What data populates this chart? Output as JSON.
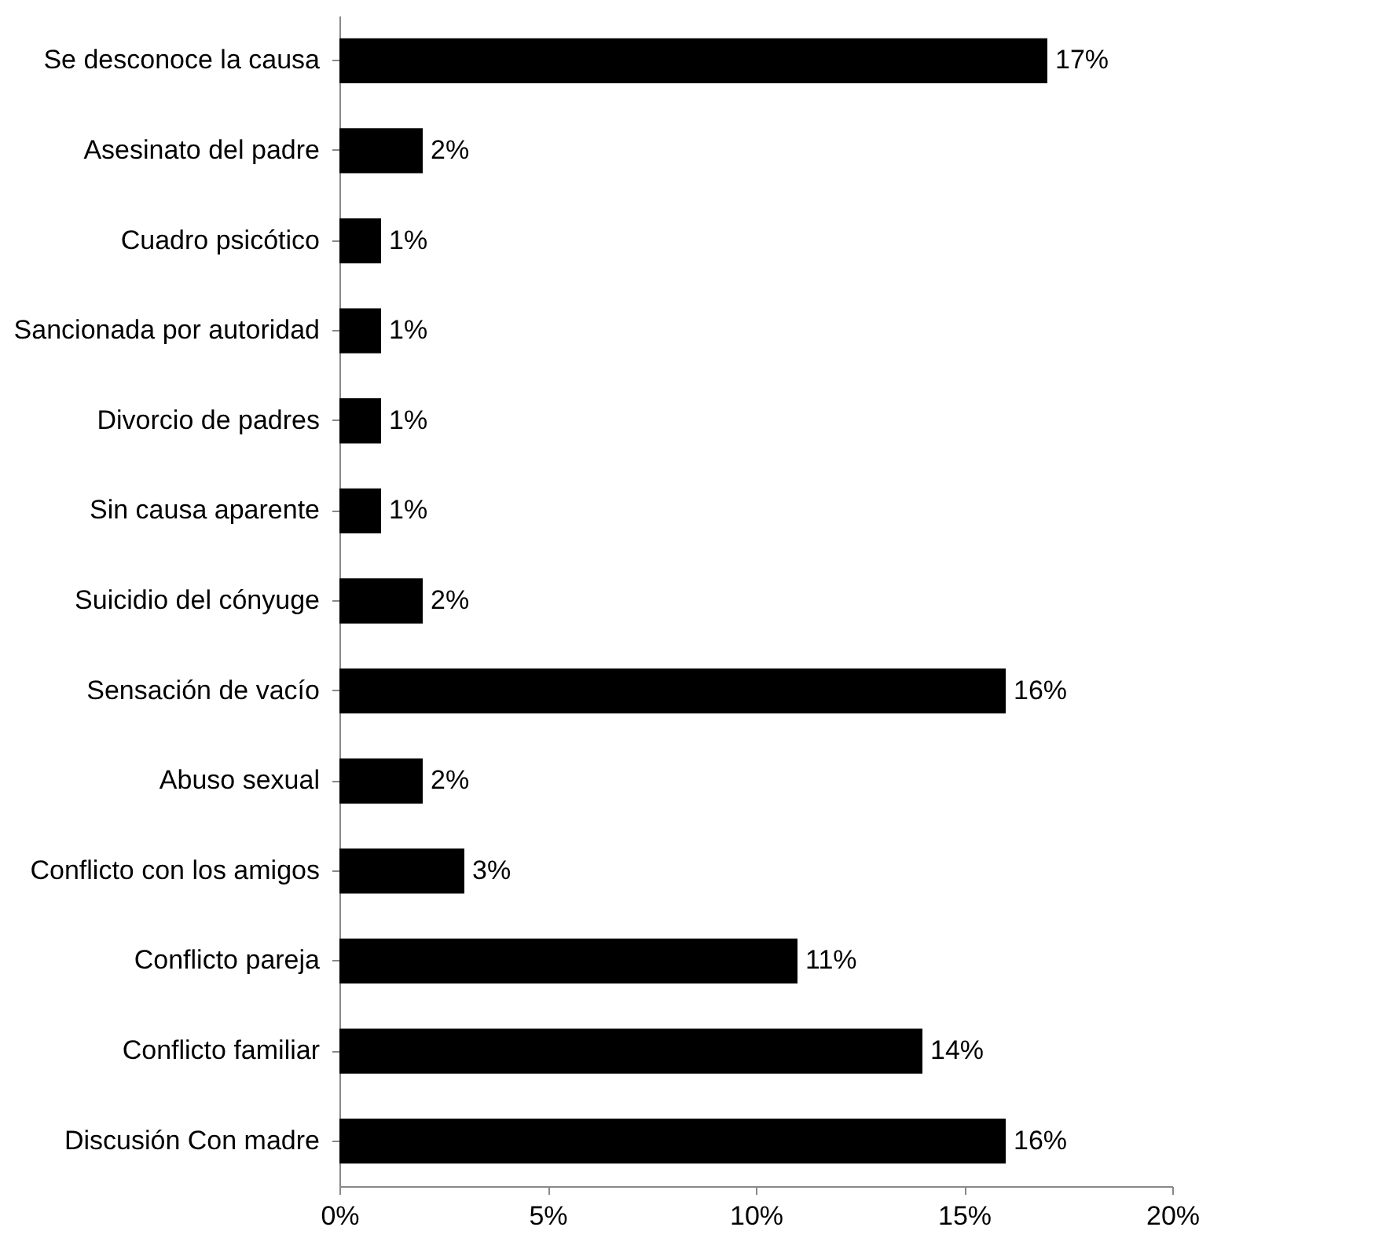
{
  "chart_data": {
    "type": "bar",
    "orientation": "horizontal",
    "categories": [
      "Se desconoce la causa",
      "Asesinato del padre",
      "Cuadro psicótico",
      "Sancionada por autoridad",
      "Divorcio de padres",
      "Sin causa aparente",
      "Suicidio del cónyuge",
      "Sensación de vacío",
      "Abuso sexual",
      "Conflicto con los amigos",
      "Conflicto pareja",
      "Conflicto familiar",
      "Discusión Con madre"
    ],
    "values": [
      17,
      2,
      1,
      1,
      1,
      1,
      2,
      16,
      2,
      3,
      11,
      14,
      16
    ],
    "value_labels": [
      "17%",
      "2%",
      "1%",
      "1%",
      "1%",
      "1%",
      "2%",
      "16%",
      "2%",
      "3%",
      "11%",
      "14%",
      "16%"
    ],
    "color": "#000000",
    "xlim": [
      0,
      20
    ],
    "xticks": [
      {
        "value": 0,
        "label": "0%"
      },
      {
        "value": 5,
        "label": "5%"
      },
      {
        "value": 10,
        "label": "10%"
      },
      {
        "value": 15,
        "label": "15%"
      },
      {
        "value": 20,
        "label": "20%"
      }
    ],
    "grid": false
  }
}
